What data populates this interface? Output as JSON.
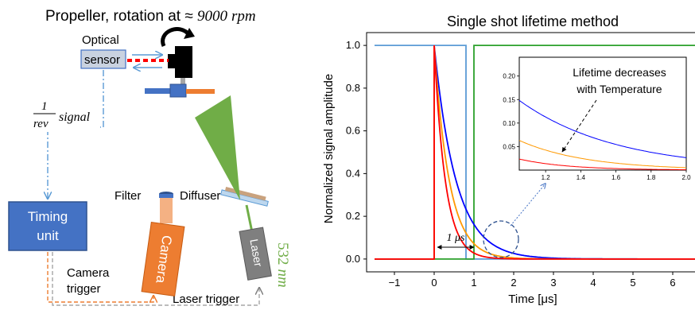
{
  "setup": {
    "title_prefix": "Propeller, rotation at ≈ ",
    "title_value": "9000",
    "title_unit": "rpm",
    "optical_label_1": "Optical",
    "optical_label_2": "sensor",
    "signal_num": "1",
    "signal_den": "rev",
    "signal_word": "signal",
    "timing_line1": "Timing",
    "timing_line2": "unit",
    "filter_label": "Filter",
    "diffuser_label": "Diffuser",
    "camera_label": "Camera",
    "laser_label": "Laser",
    "wavelength_value": "532",
    "wavelength_unit": "nm",
    "camera_trigger_1": "Camera",
    "camera_trigger_2": "trigger",
    "laser_trigger": "Laser trigger",
    "colors": {
      "timing_box": "#4472c4",
      "camera_body": "#ed7d31",
      "laser_body": "#7f7f7f",
      "beam": "#70ad47",
      "signal_line": "#5b9bd5"
    }
  },
  "chart_data": [
    {
      "type": "line",
      "title": "Single shot lifetime method",
      "xlabel": "Time [μs]",
      "ylabel": "Normalized signal amplitude",
      "xlim": [
        -1.7,
        6.7
      ],
      "ylim": [
        -0.06,
        1.06
      ],
      "xticks": [
        "−1",
        "0",
        "1",
        "2",
        "3",
        "4",
        "5",
        "6"
      ],
      "xtick_values": [
        -1,
        0,
        1,
        2,
        3,
        4,
        5,
        6
      ],
      "yticks": [
        "0.0",
        "0.2",
        "0.4",
        "0.6",
        "0.8",
        "1.0"
      ],
      "ytick_values": [
        0,
        0.2,
        0.4,
        0.6,
        0.8,
        1.0
      ],
      "series": [
        {
          "color": "#5b9bd5",
          "kind": "gate",
          "x": [
            -1.5,
            0.8,
            0.8,
            6.6
          ],
          "y": [
            1,
            1,
            0,
            0
          ]
        },
        {
          "color": "#2ca02c",
          "kind": "gate",
          "x": [
            -1.5,
            1.0,
            1.0,
            6.6
          ],
          "y": [
            0,
            0,
            1,
            1
          ]
        },
        {
          "color": "#0000ff",
          "kind": "decay",
          "tau": 0.55
        },
        {
          "color": "#ff9900",
          "kind": "decay",
          "tau": 0.38
        },
        {
          "color": "#ff0000",
          "kind": "decay",
          "tau": 0.28
        }
      ],
      "annotation_1us": "1 μs",
      "grid": false
    },
    {
      "type": "line",
      "inset": true,
      "xlim": [
        1.05,
        2.0
      ],
      "ylim": [
        0.0,
        0.24
      ],
      "xticks": [
        "1.2",
        "1.4",
        "1.6",
        "1.8",
        "2.0"
      ],
      "xtick_values": [
        1.2,
        1.4,
        1.6,
        1.8,
        2.0
      ],
      "yticks": [
        "0.05",
        "0.10",
        "0.15",
        "0.20"
      ],
      "ytick_values": [
        0.05,
        0.1,
        0.15,
        0.2
      ],
      "annotation_line1": "Lifetime decreases",
      "annotation_line2": "with Temperature"
    }
  ]
}
